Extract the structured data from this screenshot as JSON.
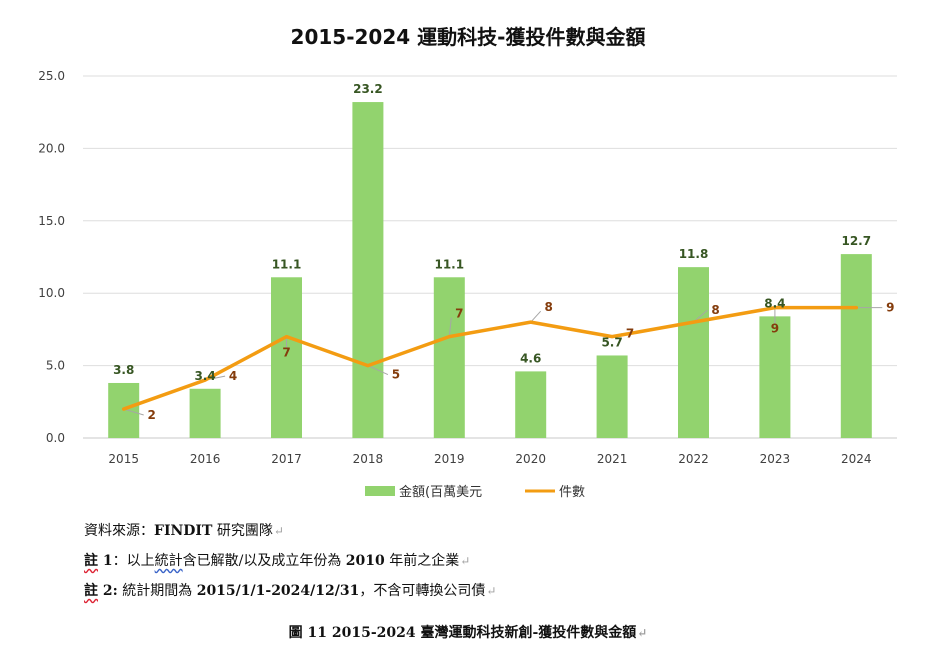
{
  "chart_data": {
    "type": "bar+line",
    "title": "2015-2024 運動科技-獲投件數與金額",
    "categories": [
      "2015",
      "2016",
      "2017",
      "2018",
      "2019",
      "2020",
      "2021",
      "2022",
      "2023",
      "2024"
    ],
    "series": [
      {
        "name": "金額(百萬美元",
        "type": "bar",
        "color": "#92d36e",
        "values": [
          3.8,
          3.4,
          11.1,
          23.2,
          11.1,
          4.6,
          5.7,
          11.8,
          8.4,
          12.7
        ],
        "labels": [
          "3.8",
          "3.4",
          "11.1",
          "23.2",
          "11.1",
          "4.6",
          "5.7",
          "11.8",
          "8.4",
          "12.7"
        ]
      },
      {
        "name": "件數",
        "type": "line",
        "color": "#f39c12",
        "values": [
          2,
          4,
          7,
          5,
          7,
          8,
          7,
          8,
          9,
          9
        ],
        "labels": [
          "2",
          "4",
          "7",
          "5",
          "7",
          "8",
          "7",
          "8",
          "9",
          "9"
        ]
      }
    ],
    "ylim": [
      0,
      25
    ],
    "yticks": [
      "0.0",
      "5.0",
      "10.0",
      "15.0",
      "20.0",
      "25.0"
    ],
    "ytick_values": [
      0,
      5,
      10,
      15,
      20,
      25
    ],
    "grid": true,
    "legend": "bottom"
  },
  "notes": {
    "source_prefix": "資料來源：",
    "source_name": "FINDIT",
    "source_suffix": " 研究團隊",
    "note1_label": "註",
    "note1_num": " 1",
    "note1_colon": "：以上",
    "note1_word": "統計",
    "note1_rest1": "含已解散/以及成立年份為 ",
    "note1_year": "2010",
    "note1_rest2": " 年前之企業",
    "note2_label": "註",
    "note2_num": " 2:",
    "note2_rest1": "  統計期間為 ",
    "note2_period": "2015/1/1-2024/12/31",
    "note2_rest2": "，不含可轉換公司債"
  },
  "caption": {
    "prefix": "圖 11 ",
    "years": "2015-2024",
    "text": " 臺灣運動科技新創-獲投件數與金額"
  }
}
